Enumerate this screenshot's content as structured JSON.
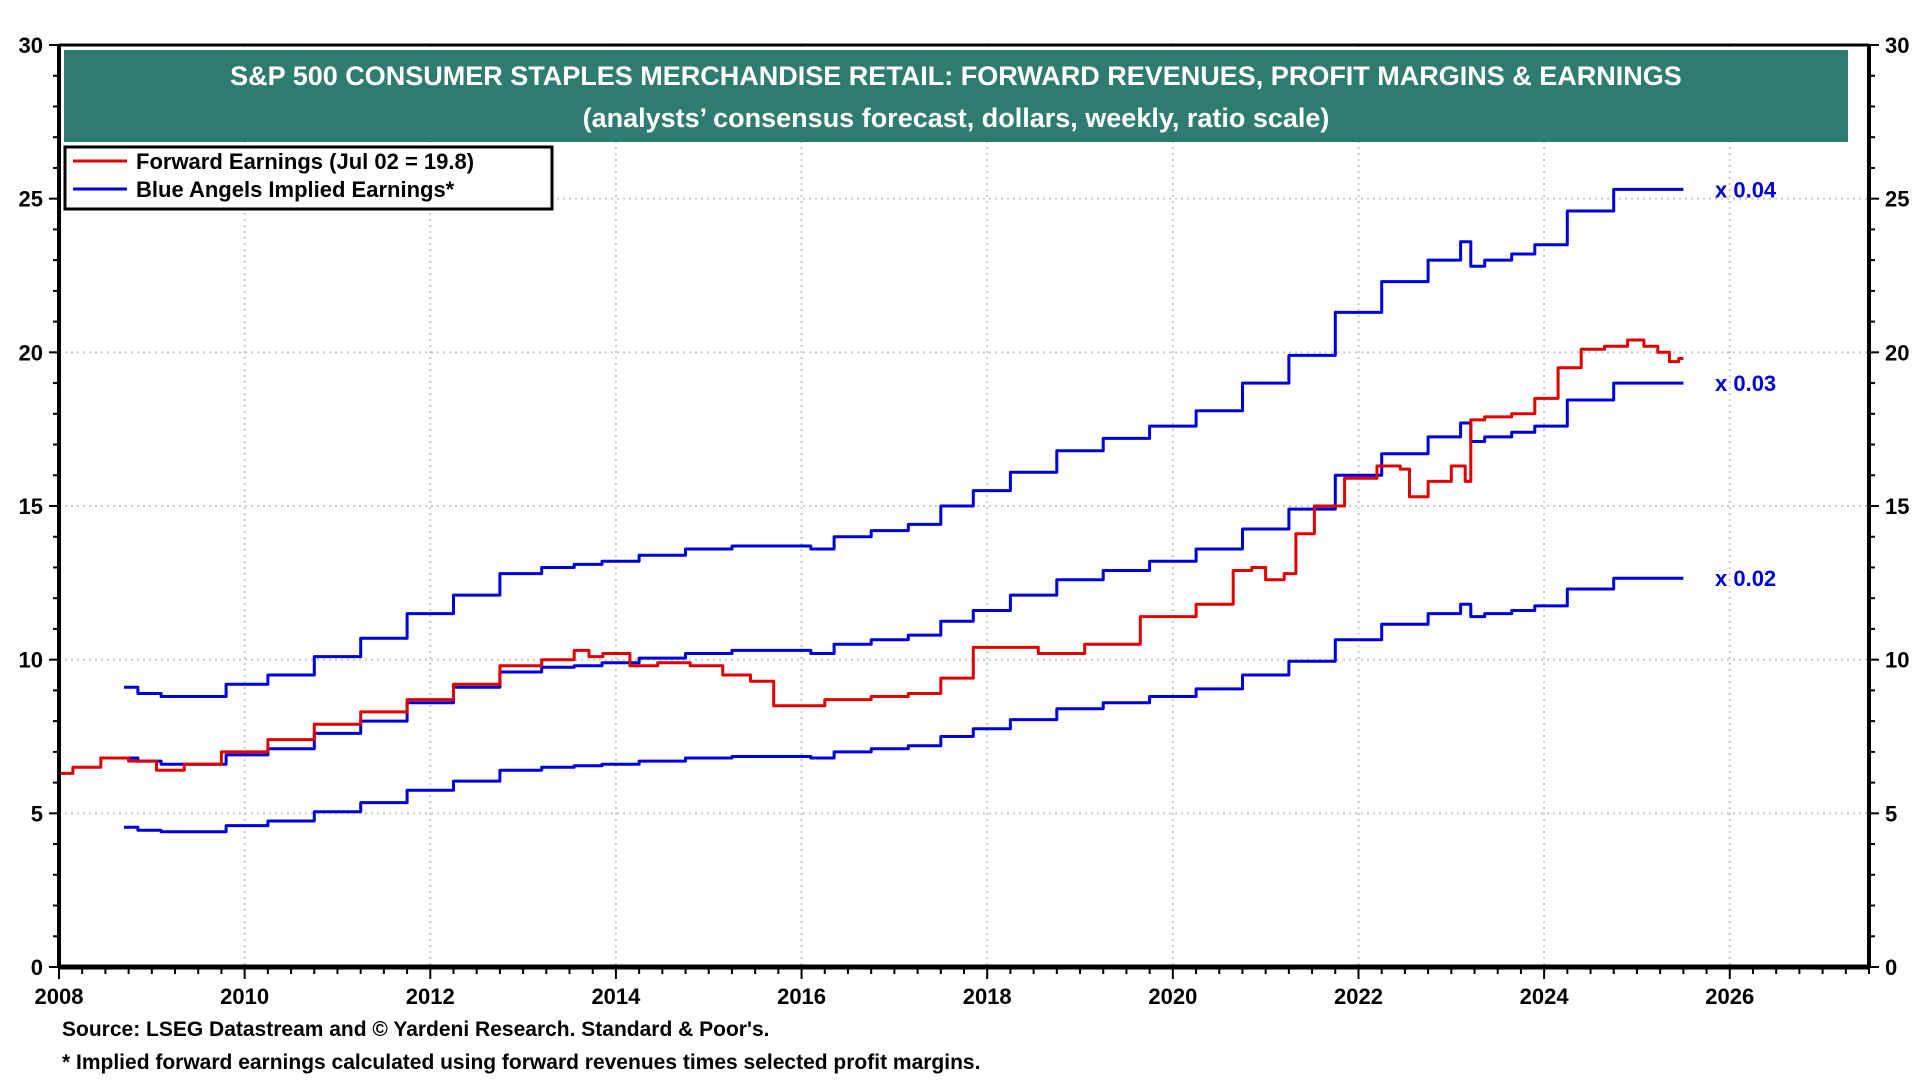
{
  "chart_data": {
    "type": "line",
    "title": "S&P 500 CONSUMER STAPLES MERCHANDISE RETAIL: FORWARD REVENUES, PROFIT MARGINS & EARNINGS",
    "subtitle": "(analysts’ consensus forecast, dollars, weekly, ratio scale)",
    "xlabel": "",
    "ylabel": "",
    "xlim": [
      2008,
      2027.5
    ],
    "ylim": [
      0,
      30
    ],
    "x_ticks": [
      "2008",
      "2010",
      "2012",
      "2014",
      "2016",
      "2018",
      "2020",
      "2022",
      "2024",
      "2026"
    ],
    "y_ticks": [
      "0",
      "5",
      "10",
      "15",
      "20",
      "25",
      "30"
    ],
    "grid": true,
    "legend_position": "top-left",
    "legend": [
      {
        "label": "Forward Earnings (Jul 02 = 19.8)",
        "color": "#e00000"
      },
      {
        "label": "Blue Angels Implied Earnings*",
        "color": "#0000dd"
      }
    ],
    "series": [
      {
        "name": "Forward Earnings",
        "color": "#e00000",
        "x": [
          2008.0,
          2008.3,
          2008.6,
          2008.9,
          2009.2,
          2009.5,
          2010.0,
          2010.5,
          2011.0,
          2011.5,
          2012.0,
          2012.5,
          2013.0,
          2013.4,
          2013.7,
          2013.72,
          2014.0,
          2014.3,
          2014.6,
          2015.0,
          2015.3,
          2015.6,
          2015.8,
          2016.0,
          2016.5,
          2017.0,
          2017.3,
          2017.7,
          2018.0,
          2018.3,
          2018.8,
          2019.3,
          2020.0,
          2020.5,
          2020.8,
          2020.9,
          2021.1,
          2021.3,
          2021.35,
          2021.7,
          2022.0,
          2022.4,
          2022.5,
          2022.6,
          2022.9,
          2023.1,
          2023.2,
          2023.22,
          2023.5,
          2023.8,
          2024.0,
          2024.3,
          2024.5,
          2024.8,
          2025.0,
          2025.15,
          2025.3,
          2025.4,
          2025.5
        ],
        "values": [
          6.3,
          6.5,
          6.8,
          6.7,
          6.4,
          6.6,
          7.0,
          7.4,
          7.9,
          8.3,
          8.7,
          9.2,
          9.8,
          10.0,
          10.3,
          10.1,
          10.2,
          9.8,
          9.9,
          9.8,
          9.5,
          9.3,
          8.5,
          8.5,
          8.7,
          8.8,
          8.9,
          9.4,
          10.4,
          10.4,
          10.2,
          10.5,
          11.4,
          11.8,
          12.9,
          13.0,
          12.6,
          12.8,
          14.1,
          15.0,
          15.9,
          16.3,
          16.2,
          15.3,
          15.8,
          16.3,
          15.8,
          17.8,
          17.9,
          18.0,
          18.5,
          19.5,
          20.1,
          20.2,
          20.4,
          20.2,
          20.0,
          19.7,
          19.8
        ]
      },
      {
        "name": "Blue Angels Implied Earnings (x 0.04)",
        "color": "#0000dd",
        "multiplier": "x 0.04",
        "x": [
          2008.7,
          2009.0,
          2009.2,
          2009.6,
          2010.0,
          2010.5,
          2011.0,
          2011.5,
          2012.0,
          2012.5,
          2013.0,
          2013.4,
          2013.7,
          2014.0,
          2014.5,
          2015.0,
          2015.5,
          2016.0,
          2016.2,
          2016.5,
          2017.0,
          2017.3,
          2017.7,
          2018.0,
          2018.5,
          2019.0,
          2019.5,
          2020.0,
          2020.5,
          2021.0,
          2021.5,
          2022.0,
          2022.5,
          2023.0,
          2023.2,
          2023.22,
          2023.5,
          2023.8,
          2024.0,
          2024.5,
          2025.0,
          2025.2,
          2025.5
        ],
        "values": [
          9.1,
          8.9,
          8.8,
          8.8,
          9.2,
          9.5,
          10.1,
          10.7,
          11.5,
          12.1,
          12.8,
          13.0,
          13.1,
          13.2,
          13.4,
          13.6,
          13.7,
          13.7,
          13.6,
          14.0,
          14.2,
          14.4,
          15.0,
          15.5,
          16.1,
          16.8,
          17.2,
          17.6,
          18.1,
          19.0,
          19.9,
          21.3,
          22.3,
          23.0,
          23.6,
          22.8,
          23.0,
          23.2,
          23.5,
          24.6,
          25.3,
          25.3,
          25.3
        ]
      },
      {
        "name": "Blue Angels Implied Earnings (x 0.03)",
        "color": "#0000dd",
        "multiplier": "x 0.03",
        "x": [
          2008.7,
          2009.0,
          2009.2,
          2009.6,
          2010.0,
          2010.5,
          2011.0,
          2011.5,
          2012.0,
          2012.5,
          2013.0,
          2013.4,
          2013.7,
          2014.0,
          2014.5,
          2015.0,
          2015.5,
          2016.0,
          2016.2,
          2016.5,
          2017.0,
          2017.3,
          2017.7,
          2018.0,
          2018.5,
          2019.0,
          2019.5,
          2020.0,
          2020.5,
          2021.0,
          2021.5,
          2022.0,
          2022.5,
          2023.0,
          2023.2,
          2023.22,
          2023.5,
          2023.8,
          2024.0,
          2024.5,
          2025.0,
          2025.2,
          2025.5
        ],
        "values": [
          6.8,
          6.7,
          6.6,
          6.6,
          6.9,
          7.1,
          7.6,
          8.0,
          8.6,
          9.1,
          9.6,
          9.75,
          9.8,
          9.9,
          10.05,
          10.2,
          10.3,
          10.3,
          10.2,
          10.5,
          10.65,
          10.8,
          11.25,
          11.6,
          12.1,
          12.6,
          12.9,
          13.2,
          13.6,
          14.25,
          14.9,
          16.0,
          16.7,
          17.25,
          17.7,
          17.1,
          17.25,
          17.4,
          17.6,
          18.45,
          19.0,
          19.0,
          19.0
        ]
      },
      {
        "name": "Blue Angels Implied Earnings (x 0.02)",
        "color": "#0000dd",
        "multiplier": "x 0.02",
        "x": [
          2008.7,
          2009.0,
          2009.2,
          2009.6,
          2010.0,
          2010.5,
          2011.0,
          2011.5,
          2012.0,
          2012.5,
          2013.0,
          2013.4,
          2013.7,
          2014.0,
          2014.5,
          2015.0,
          2015.5,
          2016.0,
          2016.2,
          2016.5,
          2017.0,
          2017.3,
          2017.7,
          2018.0,
          2018.5,
          2019.0,
          2019.5,
          2020.0,
          2020.5,
          2021.0,
          2021.5,
          2022.0,
          2022.5,
          2023.0,
          2023.2,
          2023.22,
          2023.5,
          2023.8,
          2024.0,
          2024.5,
          2025.0,
          2025.2,
          2025.5
        ],
        "values": [
          4.55,
          4.45,
          4.4,
          4.4,
          4.6,
          4.75,
          5.05,
          5.35,
          5.75,
          6.05,
          6.4,
          6.5,
          6.55,
          6.6,
          6.7,
          6.8,
          6.85,
          6.85,
          6.8,
          7.0,
          7.1,
          7.2,
          7.5,
          7.75,
          8.05,
          8.4,
          8.6,
          8.8,
          9.05,
          9.5,
          9.95,
          10.65,
          11.15,
          11.5,
          11.8,
          11.4,
          11.5,
          11.6,
          11.75,
          12.3,
          12.65,
          12.65,
          12.65
        ]
      }
    ]
  },
  "footnotes": {
    "source": "Source: LSEG Datastream and © Yardeni Research. Standard & Poor's.",
    "note": "* Implied forward earnings calculated using forward revenues times selected profit margins."
  },
  "colors": {
    "title_bar": "#2e7b6f",
    "forward_earnings": "#e00000",
    "implied_earnings": "#0000dd",
    "grid": "#c8c8c8"
  }
}
